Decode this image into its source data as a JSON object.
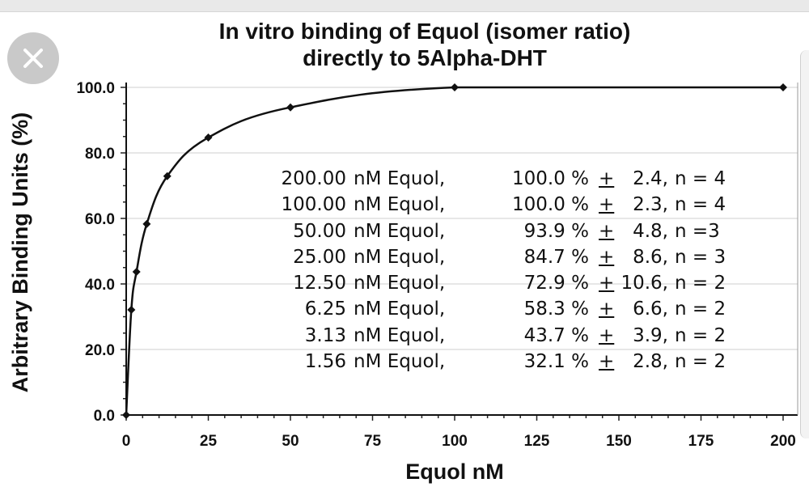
{
  "chart_data": {
    "type": "line",
    "title": "In vitro binding of Equol (isomer ratio)",
    "subtitle": "directly to 5Alpha-DHT",
    "xlabel": "Equol   nM",
    "ylabel": "Arbitrary  Binding  Units  (%)",
    "xlim": [
      0,
      200
    ],
    "ylim": [
      0,
      100
    ],
    "x_ticks": [
      0,
      25,
      50,
      75,
      100,
      125,
      150,
      175,
      200
    ],
    "y_ticks": [
      0.0,
      20.0,
      40.0,
      60.0,
      80.0,
      100.0
    ],
    "x_tick_labels": [
      "0",
      "25",
      "50",
      "75",
      "100",
      "125",
      "150",
      "175",
      "200"
    ],
    "y_tick_labels": [
      "0.0",
      "20.0",
      "40.0",
      "60.0",
      "80.0",
      "100.0"
    ],
    "grid": true,
    "series": [
      {
        "x": [
          0,
          1.56,
          3.13,
          6.25,
          12.5,
          25,
          50,
          100,
          200
        ],
        "y": [
          0,
          32.1,
          43.7,
          58.3,
          72.9,
          84.7,
          93.9,
          100.0,
          100.0
        ],
        "color": "#111111"
      }
    ],
    "annotations": [
      {
        "conc": "200.00",
        "unit": "nM Equol,",
        "pct": "100.0 %",
        "pm": "+",
        "err": "2.4,",
        "n": "n = 4"
      },
      {
        "conc": "100.00",
        "unit": "nM Equol,",
        "pct": "100.0 %",
        "pm": "+",
        "err": "2.3,",
        "n": "n = 4"
      },
      {
        "conc": "50.00",
        "unit": "nM Equol,",
        "pct": "93.9 %",
        "pm": "+",
        "err": "4.8,",
        "n": "n =3"
      },
      {
        "conc": "25.00",
        "unit": "nM Equol,",
        "pct": "84.7 %",
        "pm": "+",
        "err": "8.6,",
        "n": "n = 3"
      },
      {
        "conc": "12.50",
        "unit": "nM Equol,",
        "pct": "72.9 %",
        "pm": "+",
        "err": "10.6,",
        "n": "n = 2"
      },
      {
        "conc": "6.25",
        "unit": "nM Equol,",
        "pct": "58.3 %",
        "pm": "+",
        "err": "6.6,",
        "n": "n = 2"
      },
      {
        "conc": "3.13",
        "unit": "nM Equol,",
        "pct": "43.7 %",
        "pm": "+",
        "err": "3.9,",
        "n": "n = 2"
      },
      {
        "conc": "1.56",
        "unit": "nM Equol,",
        "pct": "32.1 %",
        "pm": "+",
        "err": "2.8,",
        "n": "n = 2"
      }
    ]
  },
  "ui": {
    "close_icon": "close-icon",
    "close_button_color": "#c9c9c9"
  }
}
